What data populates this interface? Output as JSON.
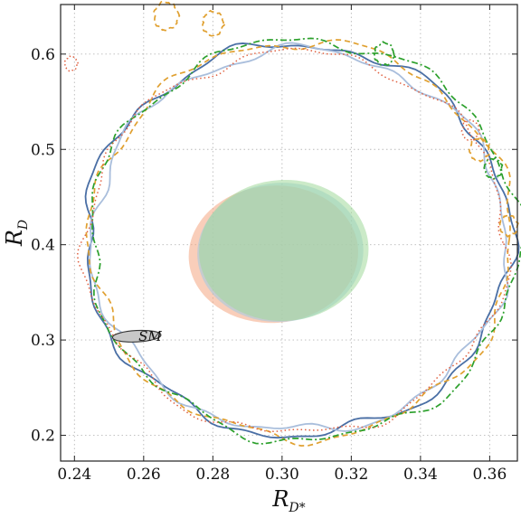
{
  "chart_data": {
    "type": "scatter",
    "title": "",
    "xlabel": "R",
    "xlabel_sub": "D*",
    "ylabel": "R",
    "ylabel_sub": "D",
    "xlim": [
      0.236,
      0.368
    ],
    "ylim": [
      0.173,
      0.652
    ],
    "x_ticks": [
      0.24,
      0.26,
      0.28,
      0.3,
      0.32,
      0.34,
      0.36
    ],
    "x_tick_labels": [
      "0.24",
      "0.26",
      "0.28",
      "0.30",
      "0.32",
      "0.34",
      "0.36"
    ],
    "y_ticks": [
      0.2,
      0.3,
      0.4,
      0.5,
      0.6
    ],
    "y_tick_labels": [
      "0.2",
      "0.3",
      "0.4",
      "0.5",
      "0.6"
    ],
    "grid": true,
    "sm_point": {
      "label": "SM",
      "x": 0.258,
      "y": 0.304,
      "x_err": 0.007,
      "y_err": 0.006
    },
    "filled_regions": [
      {
        "color": "#f4a582",
        "cx": 0.2975,
        "cy": 0.39,
        "rx": 0.0245,
        "ry": 0.072,
        "tilt_deg": -4
      },
      {
        "color": "#9ecae1",
        "cx": 0.2995,
        "cy": 0.392,
        "rx": 0.024,
        "ry": 0.073,
        "tilt_deg": -4
      },
      {
        "color": "#a1d99b",
        "cx": 0.3005,
        "cy": 0.394,
        "rx": 0.0245,
        "ry": 0.074,
        "tilt_deg": -3
      }
    ],
    "contours": [
      {
        "style": "solid",
        "color": "#4a6fa5",
        "cx": 0.3045,
        "cy": 0.405,
        "rx": 0.0615,
        "ry": 0.205
      },
      {
        "style": "solid-light",
        "color": "#a9bedc",
        "cx": 0.305,
        "cy": 0.404,
        "rx": 0.06,
        "ry": 0.2
      },
      {
        "style": "dashed",
        "color": "#e0a030",
        "cx": 0.3055,
        "cy": 0.405,
        "rx": 0.061,
        "ry": 0.208
      },
      {
        "style": "dashdot",
        "color": "#2ca02c",
        "cx": 0.3065,
        "cy": 0.405,
        "rx": 0.062,
        "ry": 0.21
      },
      {
        "style": "dotted",
        "color": "#e06040",
        "cx": 0.304,
        "cy": 0.402,
        "rx": 0.061,
        "ry": 0.2
      }
    ],
    "islands": [
      {
        "style": "dashed",
        "color": "#e0a030",
        "x": 0.2665,
        "y": 0.64,
        "r": 0.0035
      },
      {
        "style": "dashed",
        "color": "#e0a030",
        "x": 0.28,
        "y": 0.632,
        "r": 0.003
      },
      {
        "style": "dashdot",
        "color": "#2ca02c",
        "x": 0.3295,
        "y": 0.6,
        "r": 0.0028
      },
      {
        "style": "dotted",
        "color": "#e06040",
        "x": 0.3545,
        "y": 0.52,
        "r": 0.0025
      },
      {
        "style": "dashed",
        "color": "#e0a030",
        "x": 0.357,
        "y": 0.5,
        "r": 0.0028
      },
      {
        "style": "dashdot",
        "color": "#2ca02c",
        "x": 0.361,
        "y": 0.48,
        "r": 0.0025
      },
      {
        "style": "dashed",
        "color": "#e0a030",
        "x": 0.3655,
        "y": 0.42,
        "r": 0.0025
      },
      {
        "style": "dotted",
        "color": "#e06040",
        "x": 0.239,
        "y": 0.59,
        "r": 0.0018
      }
    ]
  }
}
